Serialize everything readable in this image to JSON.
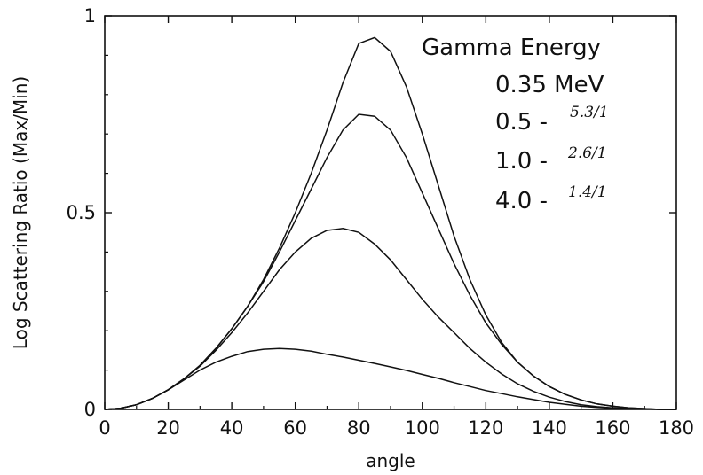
{
  "chart_data": {
    "type": "line",
    "title": "",
    "xlabel": "angle",
    "ylabel": "Log Scattering Ratio (Max/Min)",
    "xlim": [
      0,
      180
    ],
    "ylim": [
      0,
      1
    ],
    "xticks": [
      "0",
      "20",
      "40",
      "60",
      "80",
      "100",
      "120",
      "140",
      "160",
      "180"
    ],
    "yticks": [
      "0",
      "0.5",
      "1"
    ],
    "grid": false,
    "legend": {
      "placement": "top-right",
      "title": "Gamma Energy",
      "entries": [
        {
          "label": "0.35 MeV",
          "note": ""
        },
        {
          "label": "0.5 -",
          "note": "5.3/1"
        },
        {
          "label": "1.0 -",
          "note": "2.6/1"
        },
        {
          "label": "4.0 -",
          "note": "1.4/1"
        }
      ]
    },
    "x": [
      0,
      5,
      10,
      15,
      20,
      25,
      30,
      35,
      40,
      45,
      50,
      55,
      60,
      65,
      70,
      75,
      80,
      85,
      90,
      95,
      100,
      105,
      110,
      115,
      120,
      125,
      130,
      135,
      140,
      145,
      150,
      155,
      160,
      165,
      170,
      175,
      180
    ],
    "series": [
      {
        "name": "0.35 MeV",
        "values": [
          0,
          0.003,
          0.012,
          0.028,
          0.05,
          0.078,
          0.112,
          0.155,
          0.205,
          0.262,
          0.33,
          0.41,
          0.5,
          0.6,
          0.71,
          0.83,
          0.93,
          0.945,
          0.91,
          0.82,
          0.7,
          0.57,
          0.44,
          0.33,
          0.24,
          0.17,
          0.12,
          0.085,
          0.058,
          0.038,
          0.024,
          0.014,
          0.008,
          0.004,
          0.002,
          0,
          0
        ]
      },
      {
        "name": "0.5",
        "values": [
          0,
          0.003,
          0.012,
          0.028,
          0.05,
          0.078,
          0.112,
          0.155,
          0.205,
          0.262,
          0.325,
          0.4,
          0.48,
          0.56,
          0.64,
          0.71,
          0.75,
          0.745,
          0.71,
          0.64,
          0.55,
          0.46,
          0.37,
          0.29,
          0.22,
          0.165,
          0.12,
          0.085,
          0.058,
          0.038,
          0.024,
          0.014,
          0.008,
          0.004,
          0.002,
          0,
          0
        ]
      },
      {
        "name": "1.0",
        "values": [
          0,
          0.003,
          0.012,
          0.028,
          0.05,
          0.078,
          0.11,
          0.15,
          0.195,
          0.245,
          0.3,
          0.355,
          0.4,
          0.435,
          0.455,
          0.46,
          0.45,
          0.42,
          0.38,
          0.33,
          0.28,
          0.235,
          0.195,
          0.155,
          0.12,
          0.09,
          0.065,
          0.046,
          0.031,
          0.02,
          0.012,
          0.007,
          0.004,
          0.002,
          0.001,
          0,
          0
        ]
      },
      {
        "name": "4.0",
        "values": [
          0,
          0.003,
          0.012,
          0.028,
          0.05,
          0.075,
          0.1,
          0.12,
          0.135,
          0.147,
          0.153,
          0.155,
          0.153,
          0.148,
          0.14,
          0.133,
          0.125,
          0.117,
          0.108,
          0.099,
          0.089,
          0.079,
          0.068,
          0.058,
          0.048,
          0.04,
          0.032,
          0.025,
          0.018,
          0.013,
          0.008,
          0.005,
          0.003,
          0.002,
          0.001,
          0,
          0
        ]
      }
    ]
  }
}
